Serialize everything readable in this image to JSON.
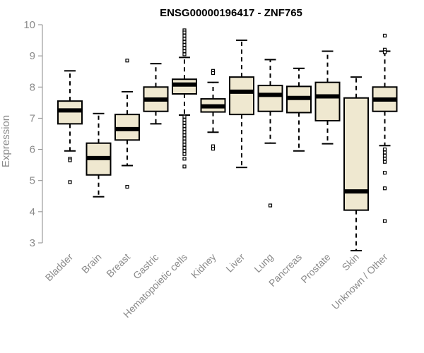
{
  "chart_data": {
    "type": "box",
    "title": "ENSG00000196417 - ZNF765",
    "ylabel": "Expression",
    "xlabel": "",
    "ylim": [
      3,
      10
    ],
    "yticks": [
      3,
      4,
      5,
      6,
      7,
      8,
      9,
      10
    ],
    "grid": false,
    "box_fill": "#efe8d0",
    "box_stroke": "#000000",
    "categories": [
      "Bladder",
      "Brain",
      "Breast",
      "Gastric",
      "Hematopoietic cells",
      "Kidney",
      "Liver",
      "Lung",
      "Pancreas",
      "Prostate",
      "Skin",
      "Unknown / Other"
    ],
    "boxes": [
      {
        "whisker_low": 5.95,
        "q1": 6.82,
        "median": 7.25,
        "q3": 7.55,
        "whisker_high": 8.52,
        "outliers": [
          5.7,
          5.65,
          4.95
        ]
      },
      {
        "whisker_low": 4.48,
        "q1": 5.18,
        "median": 5.72,
        "q3": 6.2,
        "whisker_high": 7.15,
        "outliers": []
      },
      {
        "whisker_low": 5.48,
        "q1": 6.3,
        "median": 6.65,
        "q3": 7.12,
        "whisker_high": 7.85,
        "outliers": [
          8.85,
          4.8
        ]
      },
      {
        "whisker_low": 6.82,
        "q1": 7.22,
        "median": 7.6,
        "q3": 8.0,
        "whisker_high": 8.75,
        "outliers": []
      },
      {
        "whisker_low": 7.1,
        "q1": 7.78,
        "median": 8.08,
        "q3": 8.25,
        "whisker_high": 8.95,
        "outliers": [
          9.82,
          9.75,
          9.65,
          9.55,
          9.45,
          9.35,
          9.25,
          9.15,
          9.05,
          7.05,
          6.95,
          6.85,
          6.75,
          6.65,
          6.55,
          6.45,
          6.35,
          6.25,
          6.15,
          6.05,
          5.95,
          5.85,
          5.7,
          5.45
        ]
      },
      {
        "whisker_low": 6.55,
        "q1": 7.2,
        "median": 7.38,
        "q3": 7.62,
        "whisker_high": 8.15,
        "outliers": [
          8.52,
          8.45,
          6.1,
          6.02
        ]
      },
      {
        "whisker_low": 5.42,
        "q1": 7.12,
        "median": 7.85,
        "q3": 8.32,
        "whisker_high": 9.5,
        "outliers": []
      },
      {
        "whisker_low": 6.2,
        "q1": 7.22,
        "median": 7.75,
        "q3": 8.05,
        "whisker_high": 8.88,
        "outliers": [
          4.2
        ]
      },
      {
        "whisker_low": 5.95,
        "q1": 7.18,
        "median": 7.65,
        "q3": 8.02,
        "whisker_high": 8.6,
        "outliers": []
      },
      {
        "whisker_low": 6.18,
        "q1": 6.92,
        "median": 7.7,
        "q3": 8.15,
        "whisker_high": 9.15,
        "outliers": []
      },
      {
        "whisker_low": 2.75,
        "q1": 4.05,
        "median": 4.65,
        "q3": 7.65,
        "whisker_high": 8.32,
        "outliers": []
      },
      {
        "whisker_low": 6.12,
        "q1": 7.22,
        "median": 7.6,
        "q3": 8.0,
        "whisker_high": 9.15,
        "outliers": [
          9.65,
          9.2,
          9.12,
          6.0,
          5.9,
          5.8,
          5.7,
          5.6,
          5.25,
          4.75,
          3.7
        ]
      }
    ]
  }
}
